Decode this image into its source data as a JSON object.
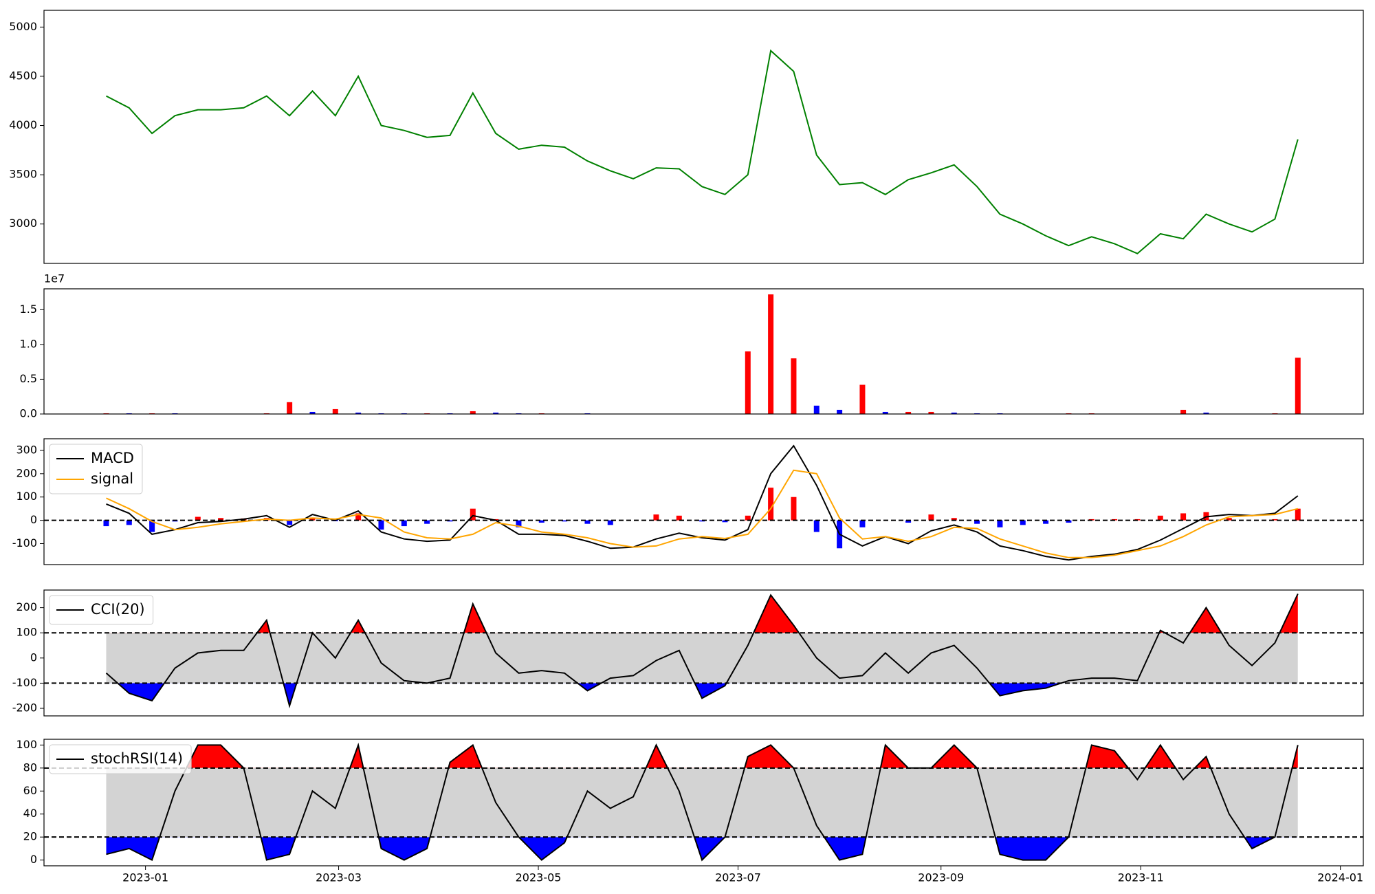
{
  "chart_data": [
    {
      "type": "line",
      "x": [
        "2022-12-20",
        "2022-12-27",
        "2023-01-03",
        "2023-01-10",
        "2023-01-17",
        "2023-01-24",
        "2023-01-31",
        "2023-02-07",
        "2023-02-14",
        "2023-02-21",
        "2023-02-28",
        "2023-03-07",
        "2023-03-14",
        "2023-03-21",
        "2023-03-28",
        "2023-04-04",
        "2023-04-11",
        "2023-04-18",
        "2023-04-25",
        "2023-05-02",
        "2023-05-09",
        "2023-05-16",
        "2023-05-23",
        "2023-05-30",
        "2023-06-06",
        "2023-06-13",
        "2023-06-20",
        "2023-06-27",
        "2023-07-04",
        "2023-07-11",
        "2023-07-18",
        "2023-07-25",
        "2023-08-01",
        "2023-08-08",
        "2023-08-15",
        "2023-08-22",
        "2023-08-29",
        "2023-09-05",
        "2023-09-12",
        "2023-09-19",
        "2023-09-26",
        "2023-10-03",
        "2023-10-10",
        "2023-10-17",
        "2023-10-24",
        "2023-10-31",
        "2023-11-07",
        "2023-11-14",
        "2023-11-21",
        "2023-11-28",
        "2023-12-05",
        "2023-12-12",
        "2023-12-19"
      ],
      "series": [
        {
          "color": "green",
          "values": [
            4300,
            4180,
            3920,
            4100,
            4160,
            4160,
            4180,
            4300,
            4100,
            4350,
            4100,
            4500,
            4000,
            3950,
            3880,
            3900,
            4330,
            3920,
            3760,
            3800,
            3780,
            3640,
            3540,
            3460,
            3570,
            3560,
            3380,
            3300,
            3500,
            4760,
            4550,
            3700,
            3400,
            3420,
            3300,
            3450,
            3520,
            3600,
            3380,
            3100,
            3000,
            2880,
            2780,
            2870,
            2800,
            2700,
            2900,
            2850,
            3100,
            3000,
            2920,
            3050,
            3860
          ]
        }
      ],
      "xlim": [
        "2022-12-01",
        "2024-01-08"
      ],
      "ylim": [
        2600,
        5170
      ],
      "yticks": [
        3000,
        3500,
        4000,
        4500,
        5000
      ]
    },
    {
      "type": "bar",
      "offset_label": "1e7",
      "values": [
        0.01,
        0.01,
        0.01,
        0.01,
        0,
        0,
        0,
        0.01,
        0.17,
        0.03,
        0.07,
        0.02,
        0.01,
        0.01,
        0.01,
        0.01,
        0.04,
        0.02,
        0.01,
        0.01,
        0,
        0.01,
        0,
        0,
        0,
        0,
        0,
        0,
        0.9,
        1.72,
        0.8,
        0.12,
        0.06,
        0.42,
        0.03,
        0.03,
        0.03,
        0.02,
        0.01,
        0.01,
        0,
        0,
        0.01,
        0.01,
        0,
        0,
        0,
        0.06,
        0.02,
        0,
        0,
        0.01,
        0.81
      ],
      "colors": [
        "red",
        "blue",
        "red",
        "blue",
        "blue",
        "red",
        "blue",
        "red",
        "red",
        "blue",
        "red",
        "blue",
        "blue",
        "blue",
        "red",
        "blue",
        "red",
        "blue",
        "blue",
        "red",
        "blue",
        "blue",
        "red",
        "blue",
        "red",
        "blue",
        "blue",
        "red",
        "red",
        "red",
        "red",
        "blue",
        "blue",
        "red",
        "blue",
        "red",
        "red",
        "blue",
        "blue",
        "blue",
        "blue",
        "blue",
        "red",
        "red",
        "blue",
        "red",
        "red",
        "red",
        "blue",
        "red",
        "red",
        "red",
        "red"
      ],
      "ylim": [
        0,
        1.8
      ],
      "yticks": [
        {
          "value": 0,
          "label": "0.0"
        },
        {
          "value": 0.5,
          "label": "0.5"
        },
        {
          "value": 1,
          "label": "1.0"
        },
        {
          "value": 1.5,
          "label": "1.5"
        }
      ]
    },
    {
      "type": "macd",
      "series": [
        {
          "name": "MACD",
          "color": "black",
          "values": [
            70,
            30,
            -60,
            -40,
            -10,
            -5,
            5,
            20,
            -30,
            25,
            0,
            40,
            -50,
            -80,
            -90,
            -85,
            20,
            0,
            -60,
            -60,
            -65,
            -90,
            -120,
            -115,
            -80,
            -55,
            -75,
            -85,
            -40,
            200,
            320,
            150,
            -60,
            -110,
            -70,
            -100,
            -45,
            -20,
            -50,
            -110,
            -130,
            -155,
            -170,
            -155,
            -145,
            -125,
            -85,
            -35,
            15,
            25,
            20,
            30,
            105
          ]
        },
        {
          "name": "signal",
          "color": "orange",
          "values": [
            95,
            50,
            -5,
            -40,
            -30,
            -15,
            -5,
            5,
            0,
            10,
            5,
            25,
            10,
            -50,
            -75,
            -80,
            -60,
            -10,
            -25,
            -50,
            -60,
            -75,
            -100,
            -115,
            -110,
            -80,
            -70,
            -78,
            -60,
            50,
            215,
            200,
            10,
            -80,
            -70,
            -90,
            -70,
            -30,
            -35,
            -80,
            -110,
            -140,
            -160,
            -160,
            -150,
            -130,
            -110,
            -70,
            -20,
            15,
            20,
            25,
            50
          ]
        }
      ],
      "hist": [
        -25,
        -20,
        -50,
        -5,
        15,
        10,
        8,
        10,
        -20,
        12,
        -4,
        30,
        -40,
        -25,
        -15,
        -5,
        50,
        5,
        -30,
        -10,
        -5,
        -15,
        -20,
        0,
        25,
        20,
        -5,
        -8,
        20,
        140,
        100,
        -50,
        -120,
        -30,
        0,
        -10,
        25,
        10,
        -15,
        -30,
        -20,
        -15,
        -10,
        5,
        5,
        5,
        20,
        30,
        35,
        10,
        0,
        5,
        50
      ],
      "hist_colors": {
        "positive": "red",
        "negative": "blue"
      },
      "levels": [
        0
      ],
      "ylim": [
        -190,
        350
      ],
      "yticks": [
        -100,
        0,
        100,
        200,
        300
      ]
    },
    {
      "type": "band",
      "series": [
        {
          "name": "CCI(20)",
          "color": "black",
          "values": [
            -60,
            -140,
            -170,
            -40,
            20,
            30,
            30,
            150,
            -190,
            100,
            0,
            150,
            -20,
            -90,
            -100,
            -80,
            215,
            20,
            -60,
            -50,
            -60,
            -130,
            -80,
            -70,
            -10,
            30,
            -160,
            -110,
            50,
            250,
            130,
            0,
            -80,
            -70,
            20,
            -60,
            20,
            50,
            -40,
            -150,
            -130,
            -120,
            -90,
            -80,
            -80,
            -90,
            110,
            60,
            200,
            50,
            -30,
            60,
            255
          ]
        }
      ],
      "levels": [
        100,
        -100
      ],
      "fill_colors": {
        "above": "red",
        "below": "blue",
        "band": "lightgray"
      },
      "ylim": [
        -230,
        270
      ],
      "yticks": [
        -200,
        -100,
        0,
        100,
        200
      ]
    },
    {
      "type": "band",
      "series": [
        {
          "name": "stochRSI(14)",
          "color": "black",
          "values": [
            5,
            10,
            0,
            60,
            100,
            100,
            80,
            0,
            5,
            60,
            45,
            100,
            10,
            0,
            10,
            85,
            100,
            50,
            20,
            0,
            15,
            60,
            45,
            55,
            100,
            60,
            0,
            20,
            90,
            100,
            80,
            30,
            0,
            5,
            100,
            80,
            80,
            100,
            80,
            5,
            0,
            0,
            20,
            100,
            95,
            70,
            100,
            70,
            90,
            40,
            10,
            20,
            100
          ]
        }
      ],
      "levels": [
        80,
        20
      ],
      "fill_colors": {
        "above": "red",
        "below": "blue",
        "band": "lightgray"
      },
      "ylim": [
        -5,
        105
      ],
      "yticks": [
        0,
        20,
        40,
        60,
        80,
        100
      ],
      "xticks": [
        "2023-01",
        "2023-03",
        "2023-05",
        "2023-07",
        "2023-09",
        "2023-11",
        "2024-01"
      ]
    }
  ]
}
